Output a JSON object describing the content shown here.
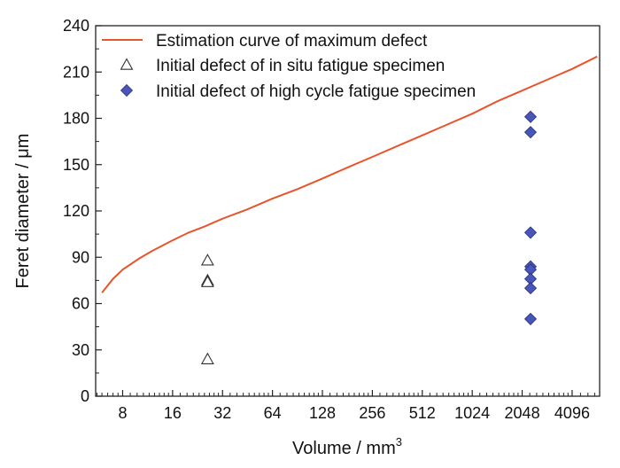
{
  "chart_data": {
    "type": "scatter",
    "xlabel": "Volume / mm",
    "xlabel_superscript": "3",
    "ylabel": "Feret diameter / μm",
    "x_scale": "log2",
    "xlim": [
      5.5,
      6000
    ],
    "ylim": [
      0,
      240
    ],
    "x_ticks": [
      8,
      16,
      32,
      64,
      128,
      256,
      512,
      1024,
      2048,
      4096
    ],
    "y_ticks": [
      0,
      30,
      60,
      90,
      120,
      150,
      180,
      210,
      240
    ],
    "grid": false,
    "legend_position": "top-left",
    "series": [
      {
        "name": "Estimation curve of maximum defect",
        "kind": "line",
        "color": "#e8552b",
        "x": [
          6,
          7,
          8,
          10,
          12,
          16,
          20,
          25,
          32,
          45,
          64,
          90,
          128,
          180,
          256,
          362,
          512,
          724,
          1024,
          1448,
          2048,
          2896,
          4096,
          5800
        ],
        "y": [
          67,
          76,
          82,
          89,
          94,
          101,
          106,
          110,
          115,
          121,
          128,
          134,
          141,
          148,
          155,
          162,
          169,
          176,
          183,
          191,
          198,
          205,
          212,
          220
        ]
      },
      {
        "name": "Initial defect of in situ fatigue specimen",
        "kind": "scatter",
        "marker": "open-triangle",
        "color": "#333333",
        "x": [
          26,
          26,
          26,
          26
        ],
        "y": [
          88,
          75,
          74,
          24
        ]
      },
      {
        "name": "Initial defect of high cycle fatigue specimen",
        "kind": "scatter",
        "marker": "filled-diamond",
        "color": "#4a55b8",
        "x": [
          2300,
          2300,
          2300,
          2300,
          2300,
          2300,
          2300,
          2300
        ],
        "y": [
          181,
          171,
          106,
          84,
          82,
          76,
          70,
          50
        ]
      }
    ]
  }
}
